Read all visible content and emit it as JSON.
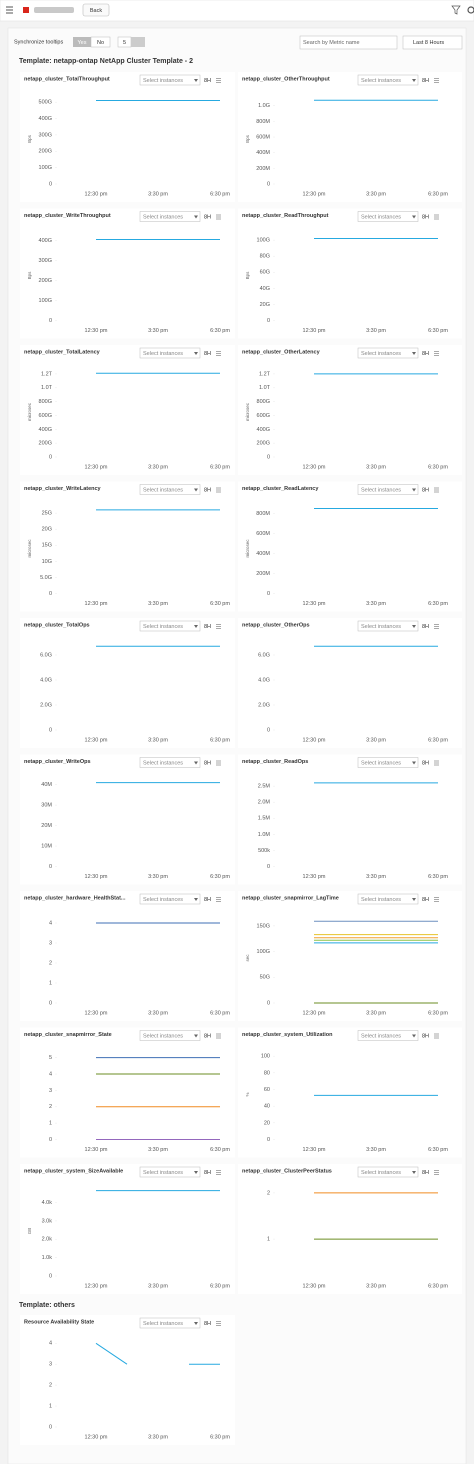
{
  "header": {
    "back": "Back"
  },
  "toolbar": {
    "sync_label": "Synchronize tooltips",
    "yes": "Yes",
    "no": "No",
    "page_size": "5",
    "search_placeholder": "Search by Metric name",
    "time_range": "Last 8 Hours"
  },
  "sections": [
    {
      "title": "Template: netapp-ontap NetApp Cluster Template - 2"
    },
    {
      "title": "Template: others"
    }
  ],
  "panel_controls": {
    "select_placeholder": "Select instances",
    "range": "8H"
  },
  "chart_data": [
    {
      "type": "line",
      "title": "netapp_cluster_TotalThroughput",
      "ylabel": "Bps",
      "categories": [
        "12:30 pm",
        "3:30 pm",
        "6:30 pm"
      ],
      "ylim": [
        0,
        550000000000.0
      ],
      "yticks": [
        0,
        {
          "value": 100000000000.0,
          "label": "100G"
        },
        {
          "value": 200000000000.0,
          "label": "200G"
        },
        {
          "value": 300000000000.0,
          "label": "300G"
        },
        {
          "value": 400000000000.0,
          "label": "400G"
        },
        {
          "value": 500000000000.0,
          "label": "500G"
        }
      ],
      "series": [
        {
          "color": "#26a9e0",
          "values": [
            510000000000.0,
            510000000000.0,
            510000000000.0
          ]
        }
      ]
    },
    {
      "type": "line",
      "title": "netapp_cluster_OtherThroughput",
      "ylabel": "Bps",
      "categories": [
        "12:30 pm",
        "3:30 pm",
        "6:30 pm"
      ],
      "ylim": [
        0,
        1150000000.0
      ],
      "yticks": [
        0,
        {
          "value": 200000000.0,
          "label": "200M"
        },
        {
          "value": 400000000.0,
          "label": "400M"
        },
        {
          "value": 600000000.0,
          "label": "600M"
        },
        {
          "value": 800000000.0,
          "label": "800M"
        },
        {
          "value": 1000000000.0,
          "label": "1.0G"
        }
      ],
      "series": [
        {
          "color": "#26a9e0",
          "values": [
            1070000000.0,
            1070000000.0,
            1070000000.0
          ]
        }
      ]
    },
    {
      "type": "line",
      "title": "netapp_cluster_WriteThroughput",
      "ylabel": "Bps",
      "categories": [
        "12:30 pm",
        "3:30 pm",
        "6:30 pm"
      ],
      "ylim": [
        0,
        450000000000.0
      ],
      "yticks": [
        0,
        {
          "value": 100000000000.0,
          "label": "100G"
        },
        {
          "value": 200000000000.0,
          "label": "200G"
        },
        {
          "value": 300000000000.0,
          "label": "300G"
        },
        {
          "value": 400000000000.0,
          "label": "400G"
        }
      ],
      "series": [
        {
          "color": "#26a9e0",
          "values": [
            405000000000.0,
            405000000000.0,
            405000000000.0
          ]
        }
      ]
    },
    {
      "type": "line",
      "title": "netapp_cluster_ReadThroughput",
      "ylabel": "Bps",
      "categories": [
        "12:30 pm",
        "3:30 pm",
        "6:30 pm"
      ],
      "ylim": [
        0,
        112000000000.0
      ],
      "yticks": [
        0,
        {
          "value": 20000000000.0,
          "label": "20G"
        },
        {
          "value": 40000000000.0,
          "label": "40G"
        },
        {
          "value": 60000000000.0,
          "label": "60G"
        },
        {
          "value": 80000000000.0,
          "label": "80G"
        },
        {
          "value": 100000000000.0,
          "label": "100G"
        }
      ],
      "series": [
        {
          "color": "#26a9e0",
          "values": [
            102000000000.0,
            102000000000.0,
            102000000000.0
          ]
        }
      ]
    },
    {
      "type": "line",
      "title": "netapp_cluster_TotalLatency",
      "ylabel": "microsec",
      "categories": [
        "12:30 pm",
        "3:30 pm",
        "6:30 pm"
      ],
      "ylim": [
        0,
        1300000000000.0
      ],
      "yticks": [
        0,
        {
          "value": 200000000000.0,
          "label": "200G"
        },
        {
          "value": 400000000000.0,
          "label": "400G"
        },
        {
          "value": 600000000000.0,
          "label": "600G"
        },
        {
          "value": 800000000000.0,
          "label": "800G"
        },
        {
          "value": 1000000000000.0,
          "label": "1.0T"
        },
        {
          "value": 1200000000000.0,
          "label": "1.2T"
        }
      ],
      "series": [
        {
          "color": "#26a9e0",
          "values": [
            1210000000000.0,
            1210000000000.0,
            1210000000000.0
          ]
        }
      ]
    },
    {
      "type": "line",
      "title": "netapp_cluster_OtherLatency",
      "ylabel": "microsec",
      "categories": [
        "12:30 pm",
        "3:30 pm",
        "6:30 pm"
      ],
      "ylim": [
        0,
        1300000000000.0
      ],
      "yticks": [
        0,
        {
          "value": 200000000000.0,
          "label": "200G"
        },
        {
          "value": 400000000000.0,
          "label": "400G"
        },
        {
          "value": 600000000000.0,
          "label": "600G"
        },
        {
          "value": 800000000000.0,
          "label": "800G"
        },
        {
          "value": 1000000000000.0,
          "label": "1.0T"
        },
        {
          "value": 1200000000000.0,
          "label": "1.2T"
        }
      ],
      "series": [
        {
          "color": "#26a9e0",
          "values": [
            1200000000000.0,
            1200000000000.0,
            1200000000000.0
          ]
        }
      ]
    },
    {
      "type": "line",
      "title": "netapp_cluster_WriteLatency",
      "ylabel": "microsec",
      "categories": [
        "12:30 pm",
        "3:30 pm",
        "6:30 pm"
      ],
      "ylim": [
        0,
        28000000000.0
      ],
      "yticks": [
        0,
        {
          "value": 5000000000.0,
          "label": "5.0G"
        },
        {
          "value": 10000000000.0,
          "label": "10G"
        },
        {
          "value": 15000000000.0,
          "label": "15G"
        },
        {
          "value": 20000000000.0,
          "label": "20G"
        },
        {
          "value": 25000000000.0,
          "label": "25G"
        }
      ],
      "series": [
        {
          "color": "#26a9e0",
          "values": [
            26000000000.0,
            26000000000.0,
            26000000000.0
          ]
        }
      ]
    },
    {
      "type": "line",
      "title": "netapp_cluster_ReadLatency",
      "ylabel": "microsec",
      "categories": [
        "12:30 pm",
        "3:30 pm",
        "6:30 pm"
      ],
      "ylim": [
        0,
        900000000.0
      ],
      "yticks": [
        0,
        {
          "value": 200000000.0,
          "label": "200M"
        },
        {
          "value": 400000000.0,
          "label": "400M"
        },
        {
          "value": 600000000.0,
          "label": "600M"
        },
        {
          "value": 800000000.0,
          "label": "800M"
        }
      ],
      "series": [
        {
          "color": "#26a9e0",
          "values": [
            850000000.0,
            850000000.0,
            850000000.0
          ]
        }
      ]
    },
    {
      "type": "line",
      "title": "netapp_cluster_TotalOps",
      "categories": [
        "12:30 pm",
        "3:30 pm",
        "6:30 pm"
      ],
      "ylim": [
        0,
        7200000000.0
      ],
      "yticks": [
        0,
        {
          "value": 2000000000.0,
          "label": "2.0G"
        },
        {
          "value": 4000000000.0,
          "label": "4.0G"
        },
        {
          "value": 6000000000.0,
          "label": "6.0G"
        }
      ],
      "series": [
        {
          "color": "#26a9e0",
          "values": [
            6700000000.0,
            6700000000.0,
            6700000000.0
          ]
        }
      ]
    },
    {
      "type": "line",
      "title": "netapp_cluster_OtherOps",
      "categories": [
        "12:30 pm",
        "3:30 pm",
        "6:30 pm"
      ],
      "ylim": [
        0,
        7200000000.0
      ],
      "yticks": [
        0,
        {
          "value": 2000000000.0,
          "label": "2.0G"
        },
        {
          "value": 4000000000.0,
          "label": "4.0G"
        },
        {
          "value": 6000000000.0,
          "label": "6.0G"
        }
      ],
      "series": [
        {
          "color": "#26a9e0",
          "values": [
            6700000000.0,
            6700000000.0,
            6700000000.0
          ]
        }
      ]
    },
    {
      "type": "line",
      "title": "netapp_cluster_WriteOps",
      "categories": [
        "12:30 pm",
        "3:30 pm",
        "6:30 pm"
      ],
      "ylim": [
        0,
        44000000.0
      ],
      "yticks": [
        0,
        {
          "value": 10000000.0,
          "label": "10M"
        },
        {
          "value": 20000000.0,
          "label": "20M"
        },
        {
          "value": 30000000.0,
          "label": "30M"
        },
        {
          "value": 40000000.0,
          "label": "40M"
        }
      ],
      "series": [
        {
          "color": "#26a9e0",
          "values": [
            41000000.0,
            41000000.0,
            41000000.0
          ]
        }
      ]
    },
    {
      "type": "line",
      "title": "netapp_cluster_ReadOps",
      "categories": [
        "12:30 pm",
        "3:30 pm",
        "6:30 pm"
      ],
      "ylim": [
        0,
        2800000.0
      ],
      "yticks": [
        0,
        {
          "value": 500000.0,
          "label": "500k"
        },
        {
          "value": 1000000.0,
          "label": "1.0M"
        },
        {
          "value": 1500000.0,
          "label": "1.5M"
        },
        {
          "value": 2000000.0,
          "label": "2.0M"
        },
        {
          "value": 2500000.0,
          "label": "2.5M"
        }
      ],
      "series": [
        {
          "color": "#26a9e0",
          "values": [
            2600000.0,
            2600000.0,
            2600000.0
          ]
        }
      ]
    },
    {
      "type": "line",
      "title": "netapp_cluster_hardware_HealthStat...",
      "categories": [
        "12:30 pm",
        "3:30 pm",
        "6:30 pm"
      ],
      "ylim": [
        0,
        4.5
      ],
      "yticks": [
        0,
        1,
        2,
        3,
        4
      ],
      "series": [
        {
          "color": "#6aa84f",
          "values": [
            4,
            4,
            4
          ]
        },
        {
          "color": "#3f6fb5",
          "values": [
            4,
            4,
            4
          ]
        }
      ]
    },
    {
      "type": "line",
      "title": "netapp_cluster_snapmirror_LagTime",
      "ylabel": "sec",
      "categories": [
        "12:30 pm",
        "3:30 pm",
        "6:30 pm"
      ],
      "ylim": [
        0,
        175000000000.0
      ],
      "yticks": [
        0,
        {
          "value": 50000000000.0,
          "label": "50G"
        },
        {
          "value": 100000000000.0,
          "label": "100G"
        },
        {
          "value": 150000000000.0,
          "label": "150G"
        }
      ],
      "series": [
        {
          "color": "#6d8fbf",
          "values": [
            159000000000.0,
            159000000000.0,
            159000000000.0
          ]
        },
        {
          "color": "#e6c229",
          "values": [
            133000000000.0,
            133000000000.0,
            133000000000.0
          ]
        },
        {
          "color": "#f0a030",
          "values": [
            127000000000.0,
            127000000000.0,
            127000000000.0
          ]
        },
        {
          "color": "#8bc34a",
          "values": [
            122000000000.0,
            122000000000.0,
            122000000000.0
          ]
        },
        {
          "color": "#26a9e0",
          "values": [
            117000000000.0,
            117000000000.0,
            117000000000.0
          ]
        },
        {
          "color": "#6b8e23",
          "values": [
            0,
            0,
            0
          ]
        }
      ]
    },
    {
      "type": "line",
      "title": "netapp_cluster_snapmirror_State",
      "categories": [
        "12:30 pm",
        "3:30 pm",
        "6:30 pm"
      ],
      "ylim": [
        0,
        5.5
      ],
      "yticks": [
        0,
        1,
        2,
        3,
        4,
        5
      ],
      "series": [
        {
          "color": "#3f6fb5",
          "values": [
            5,
            5,
            5
          ]
        },
        {
          "color": "#6b8e23",
          "values": [
            4,
            4,
            4
          ]
        },
        {
          "color": "#f08c22",
          "values": [
            2,
            2,
            2
          ]
        },
        {
          "color": "#9467bd",
          "values": [
            0,
            0,
            0
          ]
        }
      ]
    },
    {
      "type": "line",
      "title": "netapp_cluster_system_Utilization",
      "ylabel": "%",
      "categories": [
        "12:30 pm",
        "3:30 pm",
        "6:30 pm"
      ],
      "ylim": [
        0,
        108
      ],
      "yticks": [
        0,
        20,
        40,
        60,
        80,
        100
      ],
      "series": [
        {
          "color": "#26a9e0",
          "values": [
            53,
            53,
            53
          ]
        }
      ]
    },
    {
      "type": "line",
      "title": "netapp_cluster_system_SizeAvailable",
      "ylabel": "GB",
      "categories": [
        "12:30 pm",
        "3:30 pm",
        "6:30 pm"
      ],
      "ylim": [
        0,
        4900
      ],
      "yticks": [
        0,
        {
          "value": 1000,
          "label": "1.0k"
        },
        {
          "value": 2000,
          "label": "2.0k"
        },
        {
          "value": 3000,
          "label": "3.0k"
        },
        {
          "value": 4000,
          "label": "4.0k"
        }
      ],
      "series": [
        {
          "color": "#26a9e0",
          "values": [
            4650,
            4650,
            4650
          ]
        }
      ]
    },
    {
      "type": "line",
      "title": "netapp_cluster_ClusterPeerStatus",
      "categories": [
        "12:30 pm",
        "3:30 pm",
        "6:30 pm"
      ],
      "ylim": [
        0.2,
        2.15
      ],
      "yticks": [
        1,
        2
      ],
      "series": [
        {
          "color": "#f08c22",
          "values": [
            2,
            2,
            2
          ]
        },
        {
          "color": "#6b8e23",
          "values": [
            1,
            1,
            1
          ]
        }
      ]
    },
    {
      "type": "line",
      "title": "Resource Availability State",
      "categories": [
        "12:30 pm",
        null,
        "3:30 pm",
        null,
        "6:30 pm"
      ],
      "ylim": [
        0,
        4.3
      ],
      "yticks": [
        0,
        1,
        2,
        3,
        4
      ],
      "series": [
        {
          "color": "#26a9e0",
          "values": [
            4,
            3,
            null,
            3,
            3
          ]
        }
      ]
    }
  ]
}
